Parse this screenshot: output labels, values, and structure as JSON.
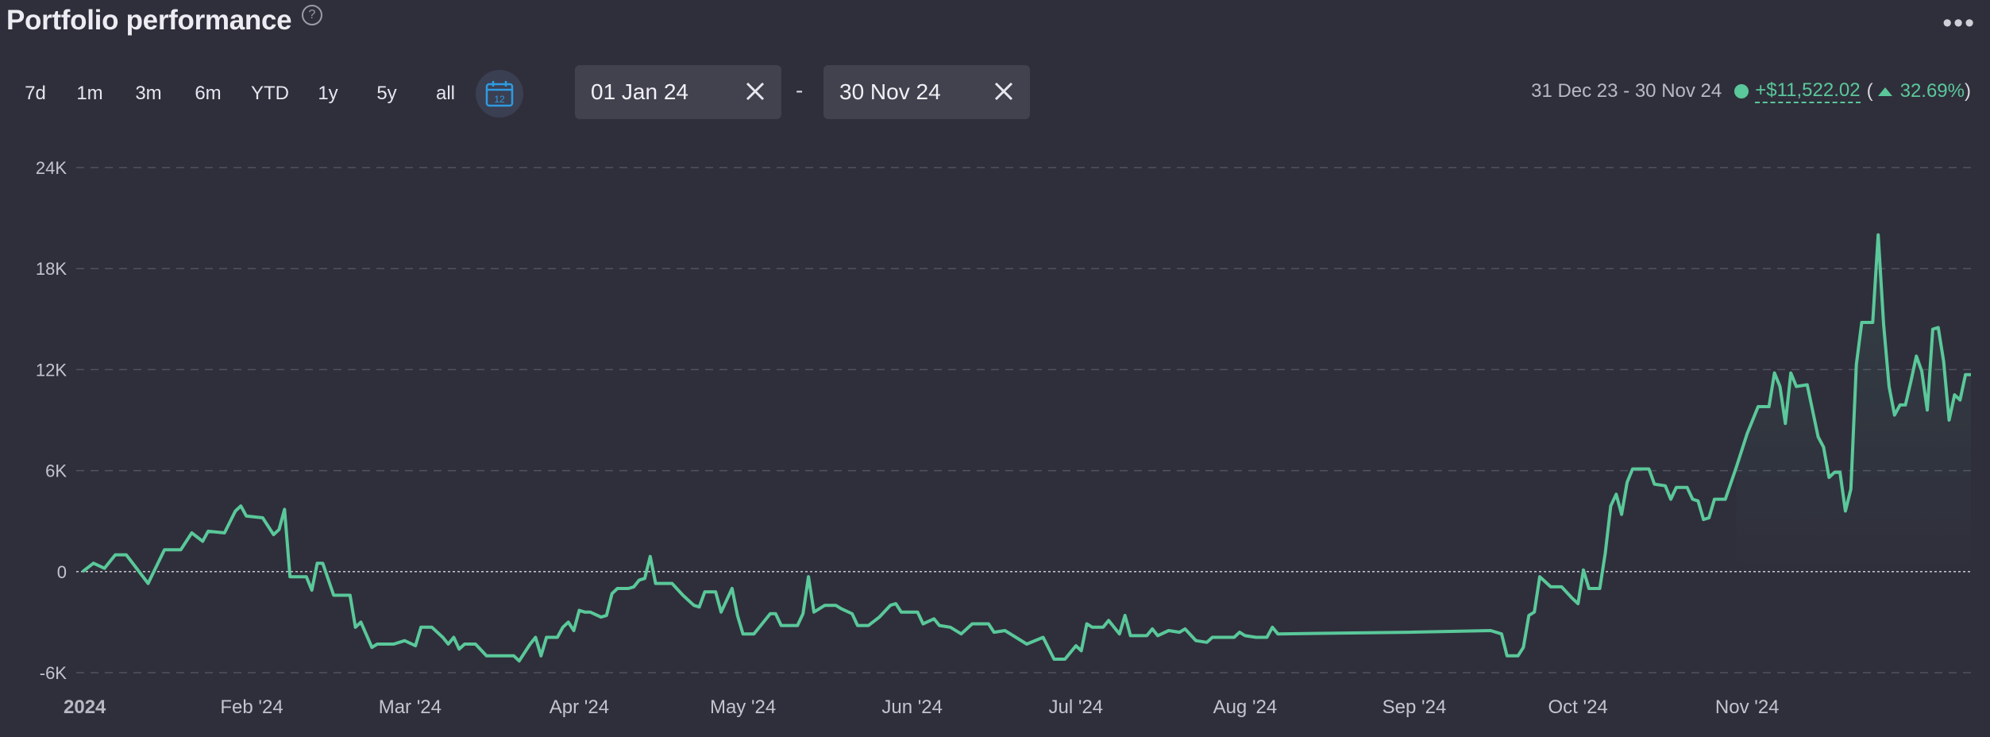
{
  "header": {
    "title": "Portfolio performance",
    "help_icon": "?",
    "more_icon": "•••"
  },
  "toolbar": {
    "ranges": [
      "7d",
      "1m",
      "3m",
      "6m",
      "YTD",
      "1y",
      "5y",
      "all"
    ],
    "calendar_icon_label": "12",
    "date_from": "01 Jan 24",
    "date_to": "30 Nov 24",
    "separator": "-"
  },
  "summary": {
    "period": "31 Dec 23 - 30 Nov 24",
    "gain": "+$11,522.02",
    "open_paren": "(",
    "percent": "32.69%",
    "close_paren": ")"
  },
  "colors": {
    "accent": "#5ac89a",
    "background": "#2f2f3b",
    "calendar": "#2f9be0"
  },
  "chart_data": {
    "type": "area",
    "x_axis": {
      "type": "date",
      "ticks": [
        "2024",
        "Feb '24",
        "Mar '24",
        "Apr '24",
        "May '24",
        "Jun '24",
        "Jul '24",
        "Aug '24",
        "Sep '24",
        "Oct '24",
        "Nov '24"
      ]
    },
    "y_axis": {
      "ticks": [
        "24K",
        "18K",
        "12K",
        "6K",
        "0",
        "-6K"
      ],
      "ylim": [
        -6000,
        24000
      ]
    },
    "grid": true,
    "points": [
      [
        "2024-01-01",
        0
      ],
      [
        "2024-01-03",
        500
      ],
      [
        "2024-01-05",
        200
      ],
      [
        "2024-01-07",
        1000
      ],
      [
        "2024-01-09",
        1000
      ],
      [
        "2024-01-13",
        -700
      ],
      [
        "2024-01-16",
        1300
      ],
      [
        "2024-01-19",
        1300
      ],
      [
        "2024-01-21",
        2300
      ],
      [
        "2024-01-23",
        1800
      ],
      [
        "2024-01-24",
        2400
      ],
      [
        "2024-01-27",
        2300
      ],
      [
        "2024-01-29",
        3600
      ],
      [
        "2024-01-30",
        3900
      ],
      [
        "2024-01-31",
        3300
      ],
      [
        "2024-02-03",
        3200
      ],
      [
        "2024-02-05",
        2200
      ],
      [
        "2024-02-06",
        2500
      ],
      [
        "2024-02-07",
        3700
      ],
      [
        "2024-02-08",
        -300
      ],
      [
        "2024-02-11",
        -300
      ],
      [
        "2024-02-12",
        -1100
      ],
      [
        "2024-02-13",
        500
      ],
      [
        "2024-02-14",
        500
      ],
      [
        "2024-02-16",
        -1400
      ],
      [
        "2024-02-19",
        -1400
      ],
      [
        "2024-02-20",
        -3300
      ],
      [
        "2024-02-21",
        -3000
      ],
      [
        "2024-02-23",
        -4500
      ],
      [
        "2024-02-24",
        -4300
      ],
      [
        "2024-02-27",
        -4300
      ],
      [
        "2024-02-29",
        -4100
      ],
      [
        "2024-03-02",
        -4400
      ],
      [
        "2024-03-03",
        -3300
      ],
      [
        "2024-03-05",
        -3300
      ],
      [
        "2024-03-07",
        -3900
      ],
      [
        "2024-03-08",
        -4300
      ],
      [
        "2024-03-09",
        -3900
      ],
      [
        "2024-03-10",
        -4600
      ],
      [
        "2024-03-11",
        -4300
      ],
      [
        "2024-03-13",
        -4300
      ],
      [
        "2024-03-15",
        -5000
      ],
      [
        "2024-03-18",
        -5000
      ],
      [
        "2024-03-20",
        -5000
      ],
      [
        "2024-03-21",
        -5300
      ],
      [
        "2024-03-23",
        -4300
      ],
      [
        "2024-03-24",
        -3900
      ],
      [
        "2024-03-25",
        -5000
      ],
      [
        "2024-03-26",
        -3900
      ],
      [
        "2024-03-28",
        -3900
      ],
      [
        "2024-03-29",
        -3300
      ],
      [
        "2024-03-30",
        -3000
      ],
      [
        "2024-03-31",
        -3500
      ],
      [
        "2024-04-01",
        -2300
      ],
      [
        "2024-04-02",
        -2400
      ],
      [
        "2024-04-03",
        -2400
      ],
      [
        "2024-04-05",
        -2700
      ],
      [
        "2024-04-06",
        -2600
      ],
      [
        "2024-04-07",
        -1300
      ],
      [
        "2024-04-08",
        -1000
      ],
      [
        "2024-04-10",
        -1000
      ],
      [
        "2024-04-11",
        -900
      ],
      [
        "2024-04-12",
        -500
      ],
      [
        "2024-04-13",
        -400
      ],
      [
        "2024-04-14",
        900
      ],
      [
        "2024-04-15",
        -700
      ],
      [
        "2024-04-18",
        -700
      ],
      [
        "2024-04-20",
        -1400
      ],
      [
        "2024-04-22",
        -2000
      ],
      [
        "2024-04-23",
        -2100
      ],
      [
        "2024-04-24",
        -1200
      ],
      [
        "2024-04-26",
        -1200
      ],
      [
        "2024-04-27",
        -2400
      ],
      [
        "2024-04-29",
        -1000
      ],
      [
        "2024-04-30",
        -2600
      ],
      [
        "2024-05-01",
        -3700
      ],
      [
        "2024-05-03",
        -3700
      ],
      [
        "2024-05-06",
        -2500
      ],
      [
        "2024-05-07",
        -2500
      ],
      [
        "2024-05-08",
        -3200
      ],
      [
        "2024-05-11",
        -3200
      ],
      [
        "2024-05-12",
        -2500
      ],
      [
        "2024-05-13",
        -300
      ],
      [
        "2024-05-14",
        -2400
      ],
      [
        "2024-05-16",
        -2000
      ],
      [
        "2024-05-18",
        -2000
      ],
      [
        "2024-05-19",
        -2200
      ],
      [
        "2024-05-21",
        -2500
      ],
      [
        "2024-05-22",
        -3200
      ],
      [
        "2024-05-24",
        -3200
      ],
      [
        "2024-05-26",
        -2700
      ],
      [
        "2024-05-28",
        -2000
      ],
      [
        "2024-05-29",
        -1900
      ],
      [
        "2024-05-30",
        -2400
      ],
      [
        "2024-06-02",
        -2400
      ],
      [
        "2024-06-03",
        -3100
      ],
      [
        "2024-06-05",
        -2800
      ],
      [
        "2024-06-06",
        -3200
      ],
      [
        "2024-06-08",
        -3300
      ],
      [
        "2024-06-10",
        -3700
      ],
      [
        "2024-06-12",
        -3100
      ],
      [
        "2024-06-15",
        -3100
      ],
      [
        "2024-06-16",
        -3600
      ],
      [
        "2024-06-18",
        -3500
      ],
      [
        "2024-06-20",
        -3900
      ],
      [
        "2024-06-22",
        -4300
      ],
      [
        "2024-06-25",
        -3900
      ],
      [
        "2024-06-27",
        -5200
      ],
      [
        "2024-06-29",
        -5200
      ],
      [
        "2024-07-01",
        -4400
      ],
      [
        "2024-07-02",
        -4700
      ],
      [
        "2024-07-03",
        -3100
      ],
      [
        "2024-07-04",
        -3300
      ],
      [
        "2024-07-06",
        -3300
      ],
      [
        "2024-07-07",
        -2900
      ],
      [
        "2024-07-09",
        -3700
      ],
      [
        "2024-07-10",
        -2600
      ],
      [
        "2024-07-11",
        -3800
      ],
      [
        "2024-07-14",
        -3800
      ],
      [
        "2024-07-15",
        -3400
      ],
      [
        "2024-07-16",
        -3800
      ],
      [
        "2024-07-18",
        -3500
      ],
      [
        "2024-07-20",
        -3600
      ],
      [
        "2024-07-21",
        -3400
      ],
      [
        "2024-07-23",
        -4100
      ],
      [
        "2024-07-25",
        -4200
      ],
      [
        "2024-07-26",
        -3900
      ],
      [
        "2024-07-28",
        -3900
      ],
      [
        "2024-07-30",
        -3900
      ],
      [
        "2024-07-31",
        -3600
      ],
      [
        "2024-08-01",
        -3800
      ],
      [
        "2024-08-03",
        -3900
      ],
      [
        "2024-08-05",
        -3900
      ],
      [
        "2024-08-06",
        -3300
      ],
      [
        "2024-08-07",
        -3700
      ],
      [
        "2024-08-31",
        -3600
      ],
      [
        "2024-09-15",
        -3500
      ],
      [
        "2024-09-17",
        -3700
      ],
      [
        "2024-09-18",
        -5000
      ],
      [
        "2024-09-20",
        -5000
      ],
      [
        "2024-09-21",
        -4500
      ],
      [
        "2024-09-22",
        -2600
      ],
      [
        "2024-09-23",
        -2400
      ],
      [
        "2024-09-24",
        -300
      ],
      [
        "2024-09-25",
        -600
      ],
      [
        "2024-09-26",
        -900
      ],
      [
        "2024-09-28",
        -900
      ],
      [
        "2024-09-30",
        -1600
      ],
      [
        "2024-10-01",
        -1900
      ],
      [
        "2024-10-02",
        100
      ],
      [
        "2024-10-03",
        -1000
      ],
      [
        "2024-10-05",
        -1000
      ],
      [
        "2024-10-06",
        1100
      ],
      [
        "2024-10-07",
        3900
      ],
      [
        "2024-10-08",
        4600
      ],
      [
        "2024-10-09",
        3400
      ],
      [
        "2024-10-10",
        5300
      ],
      [
        "2024-10-11",
        6100
      ],
      [
        "2024-10-14",
        6100
      ],
      [
        "2024-10-15",
        5200
      ],
      [
        "2024-10-17",
        5100
      ],
      [
        "2024-10-18",
        4300
      ],
      [
        "2024-10-19",
        5000
      ],
      [
        "2024-10-21",
        5000
      ],
      [
        "2024-10-22",
        4300
      ],
      [
        "2024-10-23",
        4200
      ],
      [
        "2024-10-24",
        3100
      ],
      [
        "2024-10-25",
        3200
      ],
      [
        "2024-10-26",
        4300
      ],
      [
        "2024-10-28",
        4300
      ],
      [
        "2024-10-30",
        6200
      ],
      [
        "2024-11-01",
        8200
      ],
      [
        "2024-11-03",
        9800
      ],
      [
        "2024-11-05",
        9800
      ],
      [
        "2024-11-06",
        11800
      ],
      [
        "2024-11-07",
        11000
      ],
      [
        "2024-11-08",
        8800
      ],
      [
        "2024-11-09",
        11800
      ],
      [
        "2024-11-10",
        11000
      ],
      [
        "2024-11-12",
        11100
      ],
      [
        "2024-11-14",
        8000
      ],
      [
        "2024-11-15",
        7400
      ],
      [
        "2024-11-16",
        5600
      ],
      [
        "2024-11-17",
        5900
      ],
      [
        "2024-11-18",
        5900
      ],
      [
        "2024-11-19",
        3600
      ],
      [
        "2024-11-20",
        4900
      ],
      [
        "2024-11-21",
        12300
      ],
      [
        "2024-11-22",
        14800
      ],
      [
        "2024-11-24",
        14800
      ],
      [
        "2024-11-25",
        20000
      ],
      [
        "2024-11-26",
        14700
      ],
      [
        "2024-11-27",
        11000
      ],
      [
        "2024-11-28",
        9300
      ],
      [
        "2024-11-29",
        9900
      ],
      [
        "2024-11-30",
        9900
      ],
      [
        "2024-12-01",
        11300
      ],
      [
        "2024-12-02",
        12800
      ],
      [
        "2024-12-03",
        11900
      ],
      [
        "2024-12-04",
        9600
      ],
      [
        "2024-12-05",
        14400
      ],
      [
        "2024-12-06",
        14500
      ],
      [
        "2024-12-07",
        12500
      ],
      [
        "2024-12-08",
        9000
      ],
      [
        "2024-12-09",
        10500
      ],
      [
        "2024-12-10",
        10200
      ],
      [
        "2024-12-11",
        11700
      ],
      [
        "2024-12-12",
        11700
      ]
    ]
  }
}
